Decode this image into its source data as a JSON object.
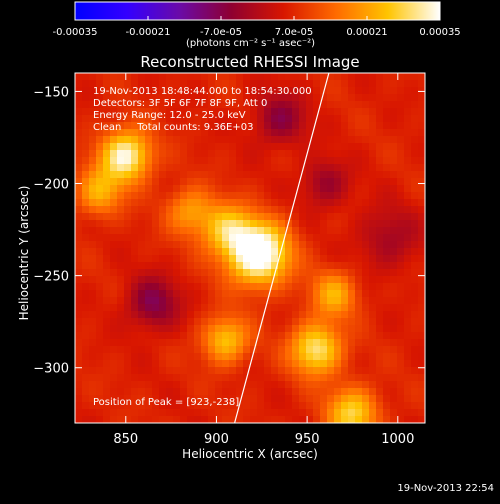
{
  "colorbar": {
    "tick_labels": [
      "-0.00035",
      "-0.00021",
      "-7.0e-05",
      "7.0e-05",
      "0.00021",
      "0.00035"
    ],
    "range": [
      -0.00035,
      0.00035
    ],
    "units_label": "(photons cm⁻² s⁻¹ asec⁻²)",
    "colormap": [
      "#0000ff",
      "#3300ff",
      "#6a0aa8",
      "#8f0030",
      "#d81600",
      "#ff6a00",
      "#ffc400",
      "#ffffff"
    ]
  },
  "chart_data": {
    "type": "heatmap",
    "title": "Reconstructed RHESSI Image",
    "xlabel": "Heliocentric X (arcsec)",
    "ylabel": "Heliocentric Y (arcsec)",
    "xlim": [
      822,
      1015
    ],
    "ylim": [
      -330,
      -140
    ],
    "xticks": [
      850,
      900,
      950,
      1000
    ],
    "yticks": [
      -150,
      -200,
      -250,
      -300
    ],
    "xtick_labels": [
      "850",
      "900",
      "950",
      "1000"
    ],
    "ytick_labels": [
      "−150",
      "−200",
      "−250",
      "−300"
    ],
    "peak": {
      "x": 923,
      "y": -238
    },
    "sources": [
      {
        "x": 923,
        "y": -238,
        "sigma": 12,
        "amp": 1.0
      },
      {
        "x": 905,
        "y": -225,
        "sigma": 10,
        "amp": 0.5
      },
      {
        "x": 850,
        "y": -185,
        "sigma": 10,
        "amp": 0.8
      },
      {
        "x": 835,
        "y": -205,
        "sigma": 9,
        "amp": 0.45
      },
      {
        "x": 955,
        "y": -290,
        "sigma": 10,
        "amp": 0.7
      },
      {
        "x": 965,
        "y": -260,
        "sigma": 9,
        "amp": 0.45
      },
      {
        "x": 975,
        "y": -325,
        "sigma": 10,
        "amp": 0.6
      },
      {
        "x": 905,
        "y": -285,
        "sigma": 9,
        "amp": 0.55
      },
      {
        "x": 885,
        "y": -215,
        "sigma": 9,
        "amp": 0.4
      },
      {
        "x": 935,
        "y": -165,
        "sigma": 10,
        "amp": -0.35
      },
      {
        "x": 865,
        "y": -265,
        "sigma": 10,
        "amp": -0.4
      },
      {
        "x": 960,
        "y": -200,
        "sigma": 9,
        "amp": -0.3
      },
      {
        "x": 995,
        "y": -230,
        "sigma": 12,
        "amp": -0.25
      }
    ],
    "limb_line": [
      [
        910,
        -330
      ],
      [
        962,
        -140
      ]
    ],
    "annotations": {
      "time_range": "19-Nov-2013 18:48:44.000 to 18:54:30.000",
      "detectors": "Detectors: 3F 5F 6F 7F 8F 9F, Att 0",
      "energy": "Energy Range: 12.0 - 25.0 keV",
      "clean": "Clean     Total counts: 9.36E+03",
      "peak_text": "Position of Peak = [923,-238]"
    }
  },
  "timestamp": "19-Nov-2013 22:54"
}
